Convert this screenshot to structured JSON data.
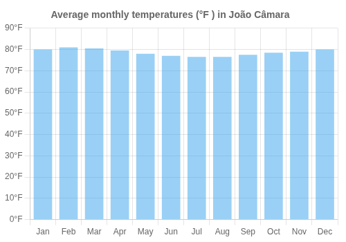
{
  "chart_data": {
    "type": "bar",
    "title": "Average monthly temperatures (°F ) in João Câmara",
    "categories": [
      "Jan",
      "Feb",
      "Mar",
      "Apr",
      "May",
      "Jun",
      "Jul",
      "Aug",
      "Sep",
      "Oct",
      "Nov",
      "Dec"
    ],
    "values": [
      80,
      81,
      80.5,
      79.5,
      78,
      77,
      76.5,
      76.5,
      77.5,
      78.5,
      79,
      80
    ],
    "ylim": [
      0,
      90
    ],
    "yticks": [
      {
        "value": 0,
        "label": "0°F"
      },
      {
        "value": 10,
        "label": "10°F"
      },
      {
        "value": 20,
        "label": "20°F"
      },
      {
        "value": 30,
        "label": "30°F"
      },
      {
        "value": 40,
        "label": "40°F"
      },
      {
        "value": 50,
        "label": "50°F"
      },
      {
        "value": 60,
        "label": "60°F"
      },
      {
        "value": 70,
        "label": "70°F"
      },
      {
        "value": 80,
        "label": "80°F"
      },
      {
        "value": 90,
        "label": "90°F"
      }
    ],
    "grid": true
  }
}
